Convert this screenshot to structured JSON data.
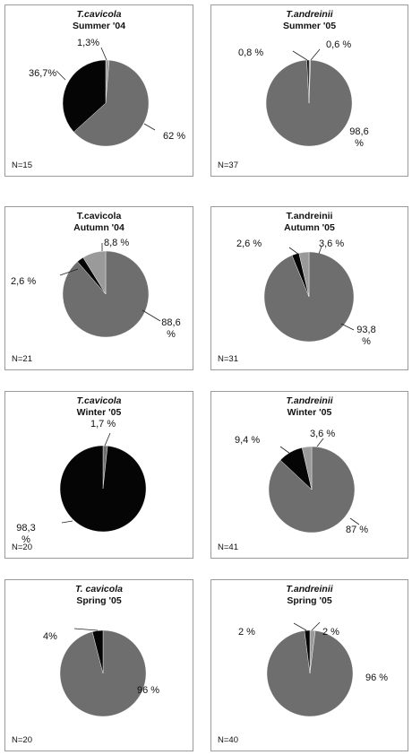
{
  "colors": {
    "major": "#6e6e6e",
    "dark": "#050505",
    "light": "#9a9a9a"
  },
  "chart_data": [
    {
      "type": "pie",
      "species": "T.cavicola",
      "species_italic": true,
      "season": "Summer '04",
      "n": "N=15",
      "slices": [
        {
          "value": 1.3,
          "label": "1,3%",
          "color": "light"
        },
        {
          "value": 62,
          "label": "62 %",
          "color": "major"
        },
        {
          "value": 36.7,
          "label": "36,7%",
          "color": "dark"
        }
      ]
    },
    {
      "type": "pie",
      "species": "T.andreinii",
      "species_italic": true,
      "season": "Summer '05",
      "n": "N=37",
      "slices": [
        {
          "value": 0.6,
          "label": "0,6 %",
          "color": "light"
        },
        {
          "value": 98.6,
          "label": "98,6 %",
          "color": "major"
        },
        {
          "value": 0.8,
          "label": "0,8 %",
          "color": "dark"
        }
      ]
    },
    {
      "type": "pie",
      "species": "T.cavicola",
      "species_italic": false,
      "season": "Autumn '04",
      "n": "N=21",
      "slices": [
        {
          "value": 88.6,
          "label": "88,6 %",
          "color": "major"
        },
        {
          "value": 2.6,
          "label": "2,6 %",
          "color": "dark"
        },
        {
          "value": 8.8,
          "label": "8,8 %",
          "color": "light"
        }
      ]
    },
    {
      "type": "pie",
      "species": "T.andreinii",
      "species_italic": false,
      "season": "Autumn '05",
      "n": "N=31",
      "slices": [
        {
          "value": 93.8,
          "label": "93,8 %",
          "color": "major"
        },
        {
          "value": 2.6,
          "label": "2,6 %",
          "color": "dark"
        },
        {
          "value": 3.6,
          "label": "3,6 %",
          "color": "light"
        }
      ]
    },
    {
      "type": "pie",
      "species": "T.cavicola",
      "species_italic": true,
      "season": "Winter '05",
      "n": "N=20",
      "slices": [
        {
          "value": 1.7,
          "label": "1,7 %",
          "color": "major"
        },
        {
          "value": 98.3,
          "label": "98,3 %",
          "color": "dark"
        }
      ]
    },
    {
      "type": "pie",
      "species": "T.andreinii",
      "species_italic": true,
      "season": "Winter '05",
      "n": "N=41",
      "slices": [
        {
          "value": 87,
          "label": "87 %",
          "color": "major"
        },
        {
          "value": 9.4,
          "label": "9,4 %",
          "color": "dark"
        },
        {
          "value": 3.6,
          "label": "3,6 %",
          "color": "light"
        }
      ]
    },
    {
      "type": "pie",
      "species": "T. cavicola",
      "species_italic": true,
      "season": "Spring '05",
      "n": "N=20",
      "slices": [
        {
          "value": 96,
          "label": "96 %",
          "color": "major"
        },
        {
          "value": 4,
          "label": "4%",
          "color": "dark"
        }
      ]
    },
    {
      "type": "pie",
      "species": "T.andreinii",
      "species_italic": true,
      "season": "Spring '05",
      "n": "N=40",
      "slices": [
        {
          "value": 2,
          "label": "2 %",
          "color": "light"
        },
        {
          "value": 96,
          "label": "96 %",
          "color": "major"
        },
        {
          "value": 2,
          "label": "2 %",
          "color": "dark"
        }
      ]
    }
  ]
}
